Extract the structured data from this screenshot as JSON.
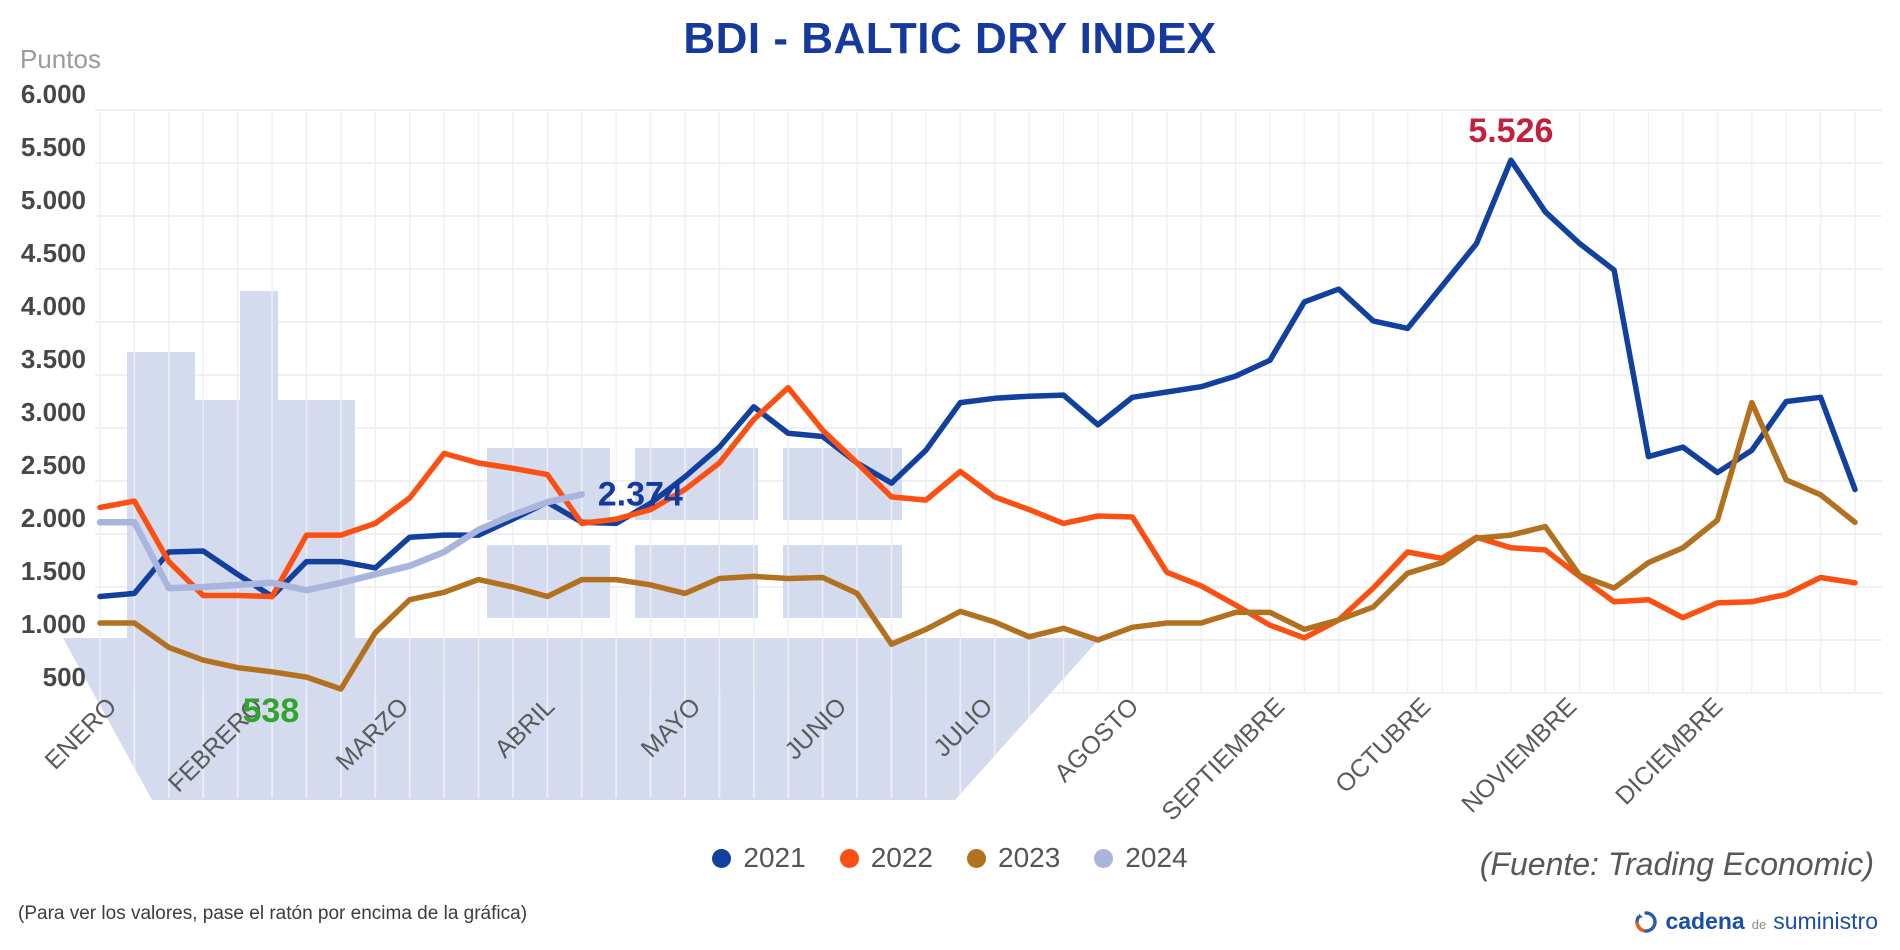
{
  "header": {
    "title": "BDI - BALTIC DRY INDEX"
  },
  "y_axis": {
    "label": "Puntos",
    "tick_labels": [
      "6.000",
      "5.500",
      "5.000",
      "4.500",
      "4.000",
      "3.500",
      "3.000",
      "2.500",
      "2.000",
      "1.500",
      "1.000",
      "500"
    ],
    "tick_values": [
      6000,
      5500,
      5000,
      4500,
      4000,
      3500,
      3000,
      2500,
      2000,
      1500,
      1000,
      500
    ]
  },
  "x_axis": {
    "months": [
      "ENERO",
      "FEBRERO",
      "MARZO",
      "ABRIL",
      "MAYO",
      "JUNIO",
      "JULIO",
      "AGOSTO",
      "SEPTIEMBRE",
      "OCTUBRE",
      "NOVIEMBRE",
      "DICIEMBRE"
    ]
  },
  "legend": [
    {
      "label": "2021",
      "color": "#11409f"
    },
    {
      "label": "2022",
      "color": "#fb5012"
    },
    {
      "label": "2023",
      "color": "#b2711f"
    },
    {
      "label": "2024",
      "color": "#a9b5dd"
    }
  ],
  "annotations": [
    {
      "text": "5.526",
      "color": "#c2203d",
      "series": "2021",
      "kind": "max"
    },
    {
      "text": "2.374",
      "color": "#15399c",
      "series": "2024",
      "kind": "end"
    },
    {
      "text": "538",
      "color": "#2fa42f",
      "series": "2023",
      "kind": "min"
    }
  ],
  "footer": {
    "source": "(Fuente: Trading Economic)",
    "note": "(Para ver los valores, pase el ratón por encima de la gráfica)",
    "logo": {
      "part1": "cadena",
      "part2": "de",
      "part3": "suministro"
    }
  },
  "chart_data": {
    "type": "line",
    "title": "BDI - BALTIC DRY INDEX",
    "ylabel": "Puntos",
    "ylim": [
      500,
      6000
    ],
    "grid": true,
    "legend_position": "bottom",
    "x_unit": "week",
    "categories_months": [
      "ENERO",
      "FEBRERO",
      "MARZO",
      "ABRIL",
      "MAYO",
      "JUNIO",
      "JULIO",
      "AGOSTO",
      "SEPTIEMBRE",
      "OCTUBRE",
      "NOVIEMBRE",
      "DICIEMBRE"
    ],
    "series": [
      {
        "name": "2021",
        "color": "#11409f",
        "width": 5.5,
        "values": [
          1410,
          1440,
          1830,
          1840,
          1620,
          1410,
          1740,
          1740,
          1680,
          1970,
          1990,
          1990,
          2140,
          2300,
          2110,
          2100,
          2290,
          2540,
          2820,
          3200,
          2950,
          2920,
          2670,
          2480,
          2790,
          3240,
          3280,
          3300,
          3310,
          3030,
          3290,
          3340,
          3390,
          3490,
          3640,
          4190,
          4310,
          4010,
          3940,
          4340,
          4740,
          5526,
          5040,
          4740,
          4490,
          2730,
          2820,
          2580,
          2790,
          3250,
          3290,
          2420
        ]
      },
      {
        "name": "2022",
        "color": "#fb5012",
        "width": 5.5,
        "values": [
          2250,
          2310,
          1740,
          1420,
          1420,
          1410,
          1990,
          1990,
          2100,
          2340,
          2760,
          2670,
          2620,
          2560,
          2100,
          2140,
          2230,
          2420,
          2670,
          3080,
          3380,
          2980,
          2670,
          2350,
          2320,
          2590,
          2350,
          2230,
          2100,
          2170,
          2160,
          1640,
          1510,
          1330,
          1140,
          1020,
          1190,
          1490,
          1830,
          1770,
          1970,
          1870,
          1850,
          1600,
          1360,
          1380,
          1210,
          1350,
          1360,
          1430,
          1590,
          1540
        ]
      },
      {
        "name": "2023",
        "color": "#b2711f",
        "width": 5.5,
        "values": [
          1160,
          1160,
          930,
          810,
          740,
          700,
          650,
          538,
          1070,
          1380,
          1450,
          1570,
          1500,
          1410,
          1570,
          1570,
          1520,
          1440,
          1580,
          1600,
          1580,
          1590,
          1440,
          960,
          1100,
          1270,
          1170,
          1030,
          1110,
          1000,
          1120,
          1160,
          1160,
          1260,
          1260,
          1100,
          1190,
          1310,
          1630,
          1730,
          1960,
          1990,
          2070,
          1610,
          1490,
          1730,
          1870,
          2130,
          3240,
          2510,
          2370,
          2110
        ]
      },
      {
        "name": "2024",
        "color": "#a9b5dd",
        "width": 6.5,
        "values": [
          2110,
          2110,
          1490,
          1500,
          1520,
          1540,
          1470,
          1540,
          1620,
          1700,
          1830,
          2040,
          2180,
          2300,
          2374
        ]
      }
    ]
  }
}
